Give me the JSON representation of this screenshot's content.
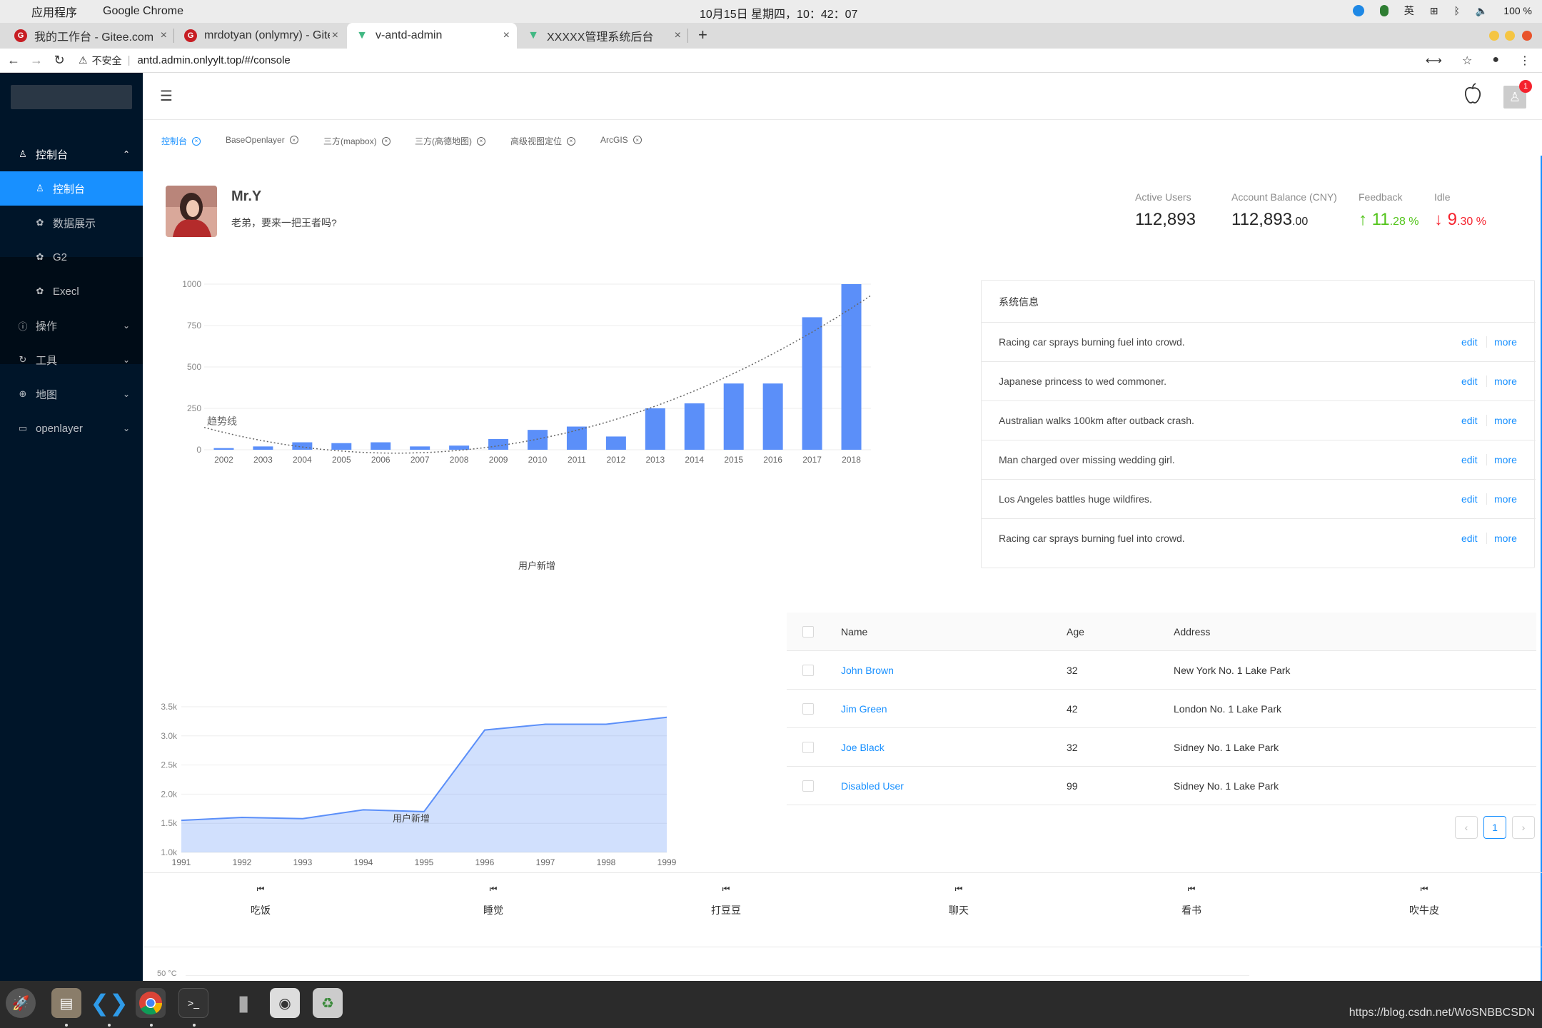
{
  "topbar": {
    "apple": "",
    "menus": [
      "应用程序",
      "Google Chrome"
    ],
    "clock": "10月15日 星期四，10：42：07",
    "status": [
      "英",
      "100 %"
    ]
  },
  "browser": {
    "tabs": [
      {
        "label": "我的工作台 - Gitee.com",
        "icon": "gitee-icon",
        "color": "#c71d23"
      },
      {
        "label": "mrdotyan (onlymry) - Gite",
        "icon": "gitee-icon",
        "color": "#c71d23"
      },
      {
        "label": "v-antd-admin",
        "icon": "vue-icon",
        "color": "#41b883"
      },
      {
        "label": "XXXXX管理系统后台",
        "icon": "vue-icon",
        "color": "#41b883"
      }
    ],
    "new_tab": "+",
    "insecure": "不安全",
    "url": "antd.admin.onlyylt.top/#/console"
  },
  "sidebar": {
    "items": [
      {
        "label": "控制台",
        "icon": "user-icon",
        "chevron": "⌃"
      },
      {
        "label": "控制台",
        "icon": "user-icon"
      },
      {
        "label": "数据展示",
        "icon": "settings-icon"
      },
      {
        "label": "G2",
        "icon": "settings-icon"
      },
      {
        "label": "Execl",
        "icon": "settings-icon"
      },
      {
        "label": "操作",
        "icon": "info-icon",
        "chevron": "⌄"
      },
      {
        "label": "工具",
        "icon": "sync-icon",
        "chevron": "⌄"
      },
      {
        "label": "地图",
        "icon": "globe-icon",
        "chevron": "⌄"
      },
      {
        "label": "openlayer",
        "icon": "desktop-icon",
        "chevron": "⌄"
      }
    ]
  },
  "header": {
    "notification_count": "1"
  },
  "page_tabs": [
    "控制台",
    "BaseOpenlayer",
    "三方(mapbox)",
    "三方(高德地图)",
    "高级视图定位",
    "ArcGIS"
  ],
  "profile": {
    "name": "Mr.Y",
    "greeting": "老弟，要来一把王者吗?"
  },
  "stats": [
    {
      "label": "Active Users",
      "value": "112,893",
      "decimal": ""
    },
    {
      "label": "Account Balance (CNY)",
      "value": "112,893",
      "decimal": ".00"
    },
    {
      "label": "Feedback",
      "value": "11",
      "decimal": ".28 %",
      "arrow": "↑",
      "color": "#52c41a"
    },
    {
      "label": "Idle",
      "value": "9",
      "decimal": ".30 %",
      "arrow": "↓",
      "color": "#f5222d"
    }
  ],
  "chart_data": [
    {
      "type": "bar",
      "categories": [
        "2002",
        "2003",
        "2004",
        "2005",
        "2006",
        "2007",
        "2008",
        "2009",
        "2010",
        "2011",
        "2012",
        "2013",
        "2014",
        "2015",
        "2016",
        "2017",
        "2018"
      ],
      "values": [
        10,
        20,
        45,
        40,
        45,
        20,
        25,
        65,
        120,
        140,
        80,
        250,
        280,
        400,
        400,
        800,
        1000
      ],
      "y_ticks": [
        "0",
        "250",
        "500",
        "750",
        "1000"
      ],
      "ylim": [
        0,
        1000
      ],
      "trendline_label": "趋势线",
      "xlabel": "用户新增",
      "color": "#5b8ff9"
    },
    {
      "type": "area",
      "x": [
        "1991",
        "1992",
        "1993",
        "1994",
        "1995",
        "1996",
        "1997",
        "1998",
        "1999"
      ],
      "values": [
        1550,
        1600,
        1580,
        1730,
        1700,
        3100,
        3200,
        3200,
        3320
      ],
      "y_ticks": [
        "1.0k",
        "1.5k",
        "2.0k",
        "2.5k",
        "3.0k",
        "3.5k"
      ],
      "ylim": [
        1000,
        3500
      ],
      "xlabel": "用户新增",
      "color": "#5b8ff9"
    }
  ],
  "system_info": {
    "title": "系统信息",
    "edit": "edit",
    "more": "more",
    "rows": [
      "Racing car sprays burning fuel into crowd.",
      "Japanese princess to wed commoner.",
      "Australian walks 100km after outback crash.",
      "Man charged over missing wedding girl.",
      "Los Angeles battles huge wildfires.",
      "Racing car sprays burning fuel into crowd."
    ]
  },
  "table": {
    "headers": [
      "Name",
      "Age",
      "Address"
    ],
    "rows": [
      {
        "name": "John Brown",
        "age": "32",
        "address": "New York No. 1 Lake Park"
      },
      {
        "name": "Jim Green",
        "age": "42",
        "address": "London No. 1 Lake Park"
      },
      {
        "name": "Joe Black",
        "age": "32",
        "address": "Sidney No. 1 Lake Park"
      },
      {
        "name": "Disabled User",
        "age": "99",
        "address": "Sidney No. 1 Lake Park"
      }
    ],
    "page": "1",
    "prev": "‹",
    "next": "›"
  },
  "actions": [
    "吃饭",
    "睡觉",
    "打豆豆",
    "聊天",
    "看书",
    "吹牛皮"
  ],
  "bottom_chart_label": "50 °C",
  "dock": {
    "credit": "https://blog.csdn.net/WoSNBBCSDN"
  }
}
